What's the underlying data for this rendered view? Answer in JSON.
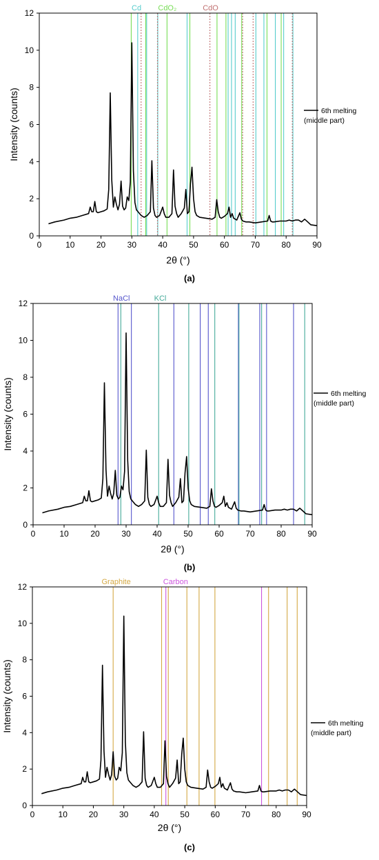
{
  "panels": [
    {
      "caption": "(a)",
      "chart_data": {
        "type": "line",
        "xlabel": "2θ (°)",
        "ylabel": "Intensity (counts)",
        "xlim": [
          0,
          90
        ],
        "ylim": [
          0,
          12
        ],
        "xticks": [
          0,
          10,
          20,
          30,
          40,
          50,
          60,
          70,
          80,
          90
        ],
        "yticks": [
          0,
          2,
          4,
          6,
          8,
          10,
          12
        ],
        "grid": false,
        "legend_position": "right",
        "series": [
          {
            "name": "6th melting (middle part)",
            "color": "#000000",
            "x": [
              3,
              5,
              8,
              10,
              12,
              14,
              16,
              16.5,
              17,
              17.5,
              18,
              18.5,
              19,
              20,
              21,
              22,
              22.5,
              23,
              23.5,
              24,
              24.5,
              25,
              25.5,
              26,
              26.5,
              27,
              27.5,
              28,
              28.5,
              29,
              29.5,
              30,
              30.5,
              31,
              31.5,
              32,
              33,
              34,
              35,
              36,
              36.5,
              37,
              37.5,
              38,
              39,
              40,
              40.5,
              41,
              42,
              43,
              43.5,
              44,
              44.5,
              45,
              46,
              47,
              47.5,
              48,
              48.5,
              49,
              49.5,
              50,
              50.5,
              51,
              52,
              54,
              56,
              57,
              57.5,
              58,
              58.5,
              59,
              60,
              61,
              61.5,
              62,
              62.5,
              63,
              64,
              65,
              65.5,
              66,
              67,
              68,
              70,
              72,
              74,
              74.5,
              75,
              75.5,
              76,
              78,
              80,
              81,
              82,
              83,
              84,
              85,
              86,
              87,
              88,
              90
            ],
            "y": [
              0.65,
              0.75,
              0.85,
              0.95,
              1.0,
              1.1,
              1.2,
              1.55,
              1.3,
              1.3,
              1.85,
              1.3,
              1.25,
              1.3,
              1.35,
              1.45,
              2.5,
              7.7,
              3.0,
              1.55,
              2.1,
              1.7,
              1.4,
              1.7,
              2.95,
              1.6,
              1.4,
              1.5,
              2.1,
              1.9,
              2.9,
              10.4,
              3.5,
              1.8,
              1.4,
              1.3,
              1.1,
              1.0,
              1.1,
              1.3,
              4.05,
              1.5,
              1.1,
              1.0,
              1.1,
              1.55,
              1.2,
              1.0,
              1.0,
              1.2,
              3.55,
              1.6,
              1.2,
              1.0,
              1.2,
              1.5,
              2.5,
              1.2,
              1.3,
              2.8,
              3.7,
              2.0,
              1.3,
              1.1,
              1.0,
              0.95,
              0.9,
              1.0,
              1.95,
              1.3,
              1.0,
              0.95,
              1.05,
              1.2,
              1.55,
              1.0,
              1.2,
              0.95,
              0.85,
              1.25,
              0.9,
              0.8,
              0.75,
              0.75,
              0.7,
              0.75,
              0.8,
              1.1,
              0.8,
              0.75,
              0.75,
              0.8,
              0.8,
              0.85,
              0.8,
              0.85,
              0.85,
              0.75,
              0.9,
              0.75,
              0.6,
              0.55
            ]
          }
        ],
        "reference_groups": [
          {
            "label": "Cd",
            "color": "#55cccc",
            "style": "solid",
            "positions": [
              31.9,
              34.8,
              38.4,
              47.9,
              61.2,
              62.3,
              63.5,
              70.2,
              72.8,
              76.5,
              79.2,
              82.2
            ]
          },
          {
            "label": "CdO₂",
            "color": "#77dd55",
            "style": "solid",
            "positions": [
              29.8,
              34.5,
              41.4,
              48.8,
              57.6,
              60.5,
              65.6,
              73.8,
              78.4
            ]
          },
          {
            "label": "CdO",
            "color": "#c07070",
            "style": "dotted",
            "positions": [
              33.0,
              38.3,
              55.3,
              65.9,
              69.3,
              82.0
            ]
          }
        ]
      }
    },
    {
      "caption": "(b)",
      "chart_data": {
        "type": "line",
        "xlabel": "2θ (°)",
        "ylabel": "Intensity (counts)",
        "xlim": [
          0,
          90
        ],
        "ylim": [
          0,
          12
        ],
        "xticks": [
          0,
          10,
          20,
          30,
          40,
          50,
          60,
          70,
          80,
          90
        ],
        "yticks": [
          0,
          2,
          4,
          6,
          8,
          10,
          12
        ],
        "grid": false,
        "legend_position": "right",
        "series": [
          {
            "name": "6th melting (middle part)",
            "color": "#000000",
            "x": [
              3,
              5,
              8,
              10,
              12,
              14,
              16,
              16.5,
              17,
              17.5,
              18,
              18.5,
              19,
              20,
              21,
              22,
              22.5,
              23,
              23.5,
              24,
              24.5,
              25,
              25.5,
              26,
              26.5,
              27,
              27.5,
              28,
              28.5,
              29,
              29.5,
              30,
              30.5,
              31,
              31.5,
              32,
              33,
              34,
              35,
              36,
              36.5,
              37,
              37.5,
              38,
              39,
              40,
              40.5,
              41,
              42,
              43,
              43.5,
              44,
              44.5,
              45,
              46,
              47,
              47.5,
              48,
              48.5,
              49,
              49.5,
              50,
              50.5,
              51,
              52,
              54,
              56,
              57,
              57.5,
              58,
              58.5,
              59,
              60,
              61,
              61.5,
              62,
              62.5,
              63,
              64,
              65,
              65.5,
              66,
              67,
              68,
              70,
              72,
              74,
              74.5,
              75,
              75.5,
              76,
              78,
              80,
              81,
              82,
              83,
              84,
              85,
              86,
              87,
              88,
              90
            ],
            "y": [
              0.65,
              0.75,
              0.85,
              0.95,
              1.0,
              1.1,
              1.2,
              1.55,
              1.3,
              1.3,
              1.85,
              1.3,
              1.25,
              1.3,
              1.35,
              1.45,
              2.5,
              7.7,
              3.0,
              1.55,
              2.1,
              1.7,
              1.4,
              1.7,
              2.95,
              1.6,
              1.4,
              1.5,
              2.1,
              1.9,
              2.9,
              10.4,
              3.5,
              1.8,
              1.4,
              1.3,
              1.1,
              1.0,
              1.1,
              1.3,
              4.05,
              1.5,
              1.1,
              1.0,
              1.1,
              1.55,
              1.2,
              1.0,
              1.0,
              1.2,
              3.55,
              1.6,
              1.2,
              1.0,
              1.2,
              1.5,
              2.5,
              1.2,
              1.3,
              2.8,
              3.7,
              2.0,
              1.3,
              1.1,
              1.0,
              0.95,
              0.9,
              1.0,
              1.95,
              1.3,
              1.0,
              0.95,
              1.05,
              1.2,
              1.55,
              1.0,
              1.2,
              0.95,
              0.85,
              1.25,
              0.9,
              0.8,
              0.75,
              0.75,
              0.7,
              0.75,
              0.8,
              1.1,
              0.8,
              0.75,
              0.75,
              0.8,
              0.8,
              0.85,
              0.8,
              0.85,
              0.85,
              0.75,
              0.9,
              0.75,
              0.6,
              0.55
            ]
          }
        ],
        "reference_groups": [
          {
            "label": "NaCl",
            "color": "#5555cc",
            "style": "solid",
            "positions": [
              27.4,
              31.7,
              45.4,
              53.9,
              56.5,
              66.2,
              73.1,
              75.3,
              84.0
            ]
          },
          {
            "label": "KCl",
            "color": "#44aa99",
            "style": "solid",
            "positions": [
              28.3,
              40.5,
              50.2,
              58.6,
              66.4,
              73.7,
              87.6
            ]
          }
        ]
      }
    },
    {
      "caption": "(c)",
      "chart_data": {
        "type": "line",
        "xlabel": "2θ (°)",
        "ylabel": "Intensity (counts)",
        "xlim": [
          0,
          90
        ],
        "ylim": [
          0,
          12
        ],
        "xticks": [
          0,
          10,
          20,
          30,
          40,
          50,
          60,
          70,
          80,
          90
        ],
        "yticks": [
          0,
          2,
          4,
          6,
          8,
          10,
          12
        ],
        "grid": false,
        "legend_position": "right",
        "series": [
          {
            "name": "6th melting (middle part)",
            "color": "#000000",
            "x": [
              3,
              5,
              8,
              10,
              12,
              14,
              16,
              16.5,
              17,
              17.5,
              18,
              18.5,
              19,
              20,
              21,
              22,
              22.5,
              23,
              23.5,
              24,
              24.5,
              25,
              25.5,
              26,
              26.5,
              27,
              27.5,
              28,
              28.5,
              29,
              29.5,
              30,
              30.5,
              31,
              31.5,
              32,
              33,
              34,
              35,
              36,
              36.5,
              37,
              37.5,
              38,
              39,
              40,
              40.5,
              41,
              42,
              43,
              43.5,
              44,
              44.5,
              45,
              46,
              47,
              47.5,
              48,
              48.5,
              49,
              49.5,
              50,
              50.5,
              51,
              52,
              54,
              56,
              57,
              57.5,
              58,
              58.5,
              59,
              60,
              61,
              61.5,
              62,
              62.5,
              63,
              64,
              65,
              65.5,
              66,
              67,
              68,
              70,
              72,
              74,
              74.5,
              75,
              75.5,
              76,
              78,
              80,
              81,
              82,
              83,
              84,
              85,
              86,
              87,
              88,
              90
            ],
            "y": [
              0.65,
              0.75,
              0.85,
              0.95,
              1.0,
              1.1,
              1.2,
              1.55,
              1.3,
              1.3,
              1.85,
              1.3,
              1.25,
              1.3,
              1.35,
              1.45,
              2.5,
              7.7,
              3.0,
              1.55,
              2.1,
              1.7,
              1.4,
              1.7,
              2.95,
              1.6,
              1.4,
              1.5,
              2.1,
              1.9,
              2.9,
              10.4,
              3.5,
              1.8,
              1.4,
              1.3,
              1.1,
              1.0,
              1.1,
              1.3,
              4.05,
              1.5,
              1.1,
              1.0,
              1.1,
              1.55,
              1.2,
              1.0,
              1.0,
              1.2,
              3.55,
              1.6,
              1.2,
              1.0,
              1.2,
              1.5,
              2.5,
              1.2,
              1.3,
              2.8,
              3.7,
              2.0,
              1.3,
              1.1,
              1.0,
              0.95,
              0.9,
              1.0,
              1.95,
              1.3,
              1.0,
              0.95,
              1.05,
              1.2,
              1.55,
              1.0,
              1.2,
              0.95,
              0.85,
              1.25,
              0.9,
              0.8,
              0.75,
              0.75,
              0.7,
              0.75,
              0.8,
              1.1,
              0.8,
              0.75,
              0.75,
              0.8,
              0.8,
              0.85,
              0.8,
              0.85,
              0.85,
              0.75,
              0.9,
              0.75,
              0.6,
              0.55
            ]
          }
        ],
        "reference_groups": [
          {
            "label": "Graphite",
            "color": "#d4a843",
            "style": "solid",
            "positions": [
              26.5,
              42.4,
              44.6,
              50.7,
              54.7,
              59.9,
              77.5,
              83.6,
              86.9
            ]
          },
          {
            "label": "Carbon",
            "color": "#cc55dd",
            "style": "solid",
            "positions": [
              43.8,
              75.2
            ]
          }
        ]
      }
    }
  ]
}
